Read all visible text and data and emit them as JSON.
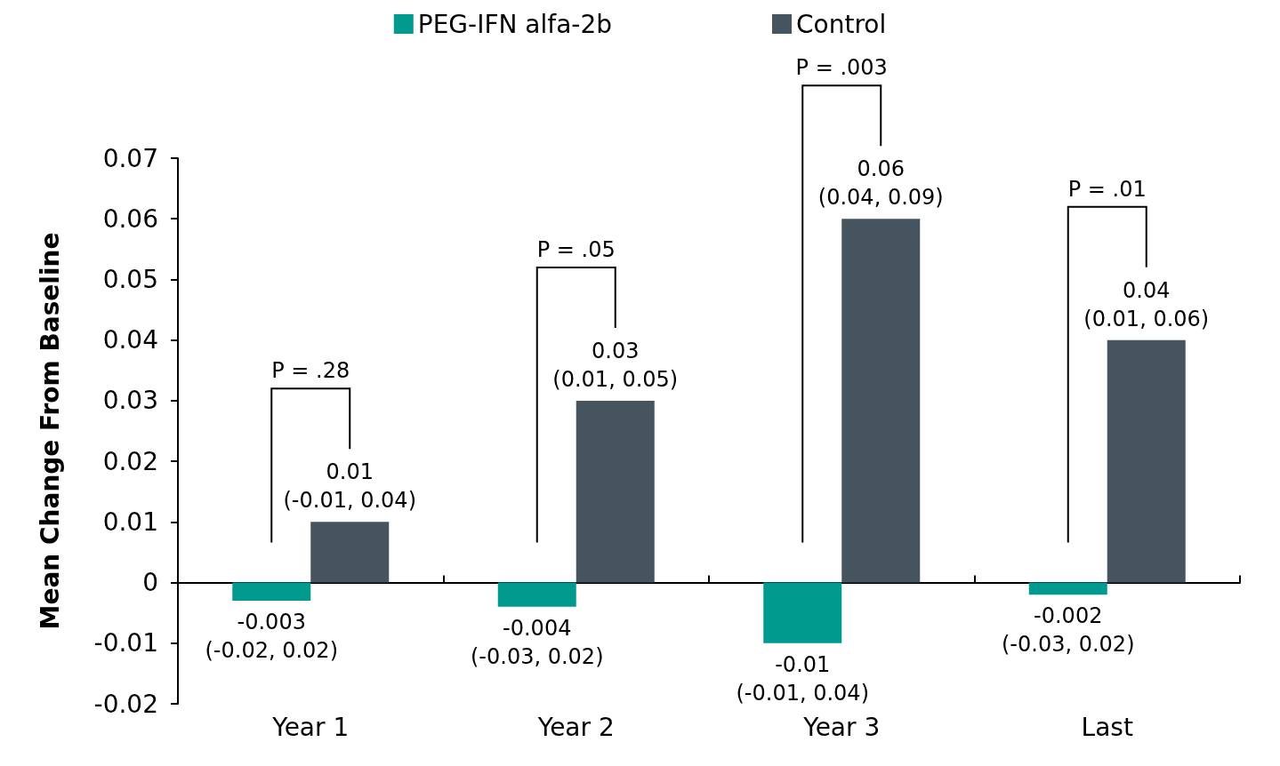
{
  "chart_data": {
    "type": "bar",
    "ylabel": "Mean Change From Baseline",
    "categories": [
      "Year 1",
      "Year 2",
      "Year 3",
      "Last"
    ],
    "series": [
      {
        "name": "PEG-IFN alfa-2b",
        "color": "#009a8f",
        "values": [
          -0.003,
          -0.004,
          -0.01,
          -0.002
        ],
        "value_labels": [
          "-0.003\n(-0.02, 0.02)",
          "-0.004\n(-0.03, 0.02)",
          "-0.01\n(-0.01, 0.04)",
          "-0.002\n(-0.03, 0.02)"
        ]
      },
      {
        "name": "Control",
        "color": "#45545e",
        "values": [
          0.01,
          0.03,
          0.06,
          0.04
        ],
        "value_labels": [
          "0.01\n(-0.01, 0.04)",
          "0.03\n(0.01, 0.05)",
          "0.06\n(0.04, 0.09)",
          "0.04\n(0.01, 0.06)"
        ]
      }
    ],
    "annotations": [
      "P = .28",
      "P = .05",
      "P = .003",
      "P = .01"
    ],
    "ylim": [
      -0.02,
      0.07
    ],
    "yticks": [
      -0.02,
      -0.01,
      0,
      0.01,
      0.02,
      0.03,
      0.04,
      0.05,
      0.06,
      0.07
    ],
    "legend": "top"
  }
}
